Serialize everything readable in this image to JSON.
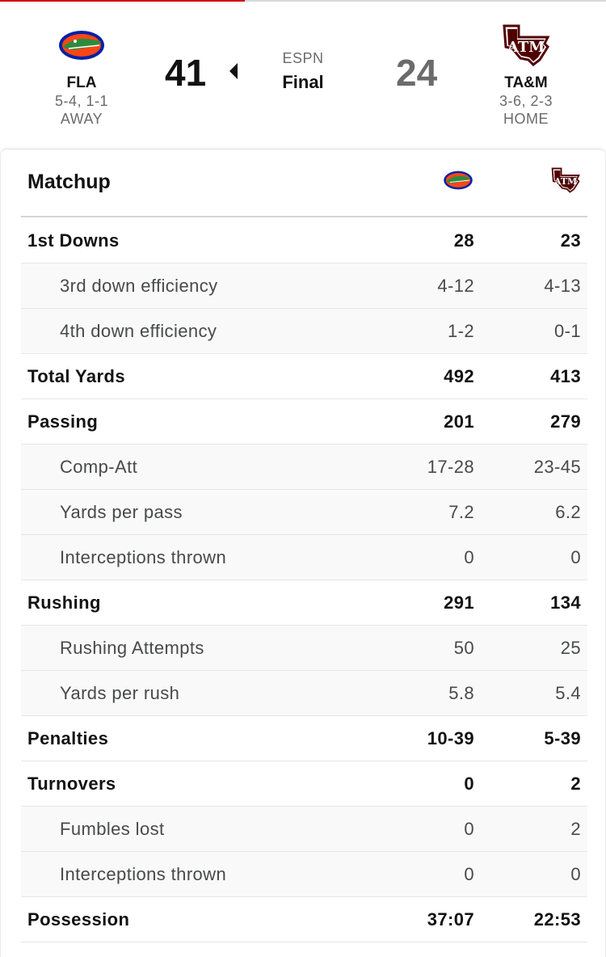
{
  "game": {
    "network": "ESPN",
    "status": "Final",
    "away": {
      "abbr": "FLA",
      "record": "5-4, 1-1",
      "side": "AWAY",
      "score": "41",
      "logo": "gator-logo-icon"
    },
    "home": {
      "abbr": "TA&M",
      "record": "3-6, 2-3",
      "side": "HOME",
      "score": "24",
      "logo": "atm-logo-icon"
    }
  },
  "matchup": {
    "title": "Matchup",
    "rows": [
      {
        "label": "1st Downs",
        "away": "28",
        "home": "23",
        "type": "main"
      },
      {
        "label": "3rd down efficiency",
        "away": "4-12",
        "home": "4-13",
        "type": "sub"
      },
      {
        "label": "4th down efficiency",
        "away": "1-2",
        "home": "0-1",
        "type": "sub"
      },
      {
        "label": "Total Yards",
        "away": "492",
        "home": "413",
        "type": "main"
      },
      {
        "label": "Passing",
        "away": "201",
        "home": "279",
        "type": "main"
      },
      {
        "label": "Comp-Att",
        "away": "17-28",
        "home": "23-45",
        "type": "sub"
      },
      {
        "label": "Yards per pass",
        "away": "7.2",
        "home": "6.2",
        "type": "sub"
      },
      {
        "label": "Interceptions thrown",
        "away": "0",
        "home": "0",
        "type": "sub"
      },
      {
        "label": "Rushing",
        "away": "291",
        "home": "134",
        "type": "main"
      },
      {
        "label": "Rushing Attempts",
        "away": "50",
        "home": "25",
        "type": "sub"
      },
      {
        "label": "Yards per rush",
        "away": "5.8",
        "home": "5.4",
        "type": "sub"
      },
      {
        "label": "Penalties",
        "away": "10-39",
        "home": "5-39",
        "type": "main"
      },
      {
        "label": "Turnovers",
        "away": "0",
        "home": "2",
        "type": "main"
      },
      {
        "label": "Fumbles lost",
        "away": "0",
        "home": "2",
        "type": "sub"
      },
      {
        "label": "Interceptions thrown",
        "away": "0",
        "home": "0",
        "type": "sub"
      },
      {
        "label": "Possession",
        "away": "37:07",
        "home": "22:53",
        "type": "main"
      }
    ]
  },
  "colors": {
    "accent": "#d00000",
    "gator_blue": "#0021a5",
    "gator_orange": "#fa4616",
    "atm_maroon": "#500000"
  }
}
